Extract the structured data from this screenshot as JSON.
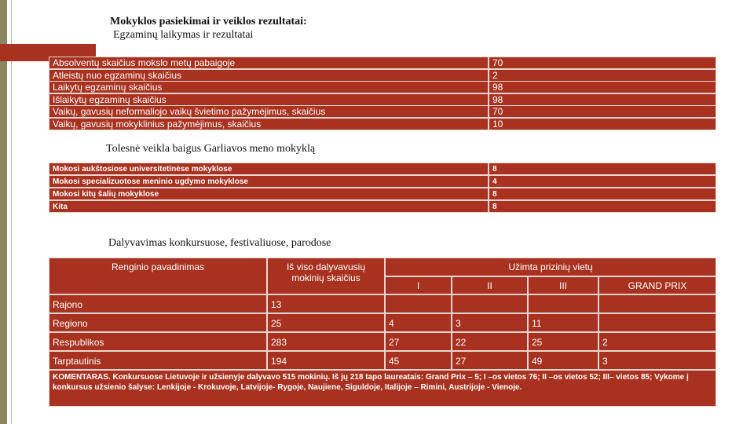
{
  "header": {
    "title": "Mokyklos pasiekimai ir veiklos rezultatai:",
    "subtitle": "Egzaminų laikymas ir rezultatai"
  },
  "exams": {
    "rows": [
      [
        "Absolventų skaičius mokslo metų pabaigoje",
        70
      ],
      [
        "Atleistų nuo egzaminų skaičius",
        2
      ],
      [
        "Laikytų egzaminų skaičius",
        98
      ],
      [
        "Išlaikytų egzaminų skaičius",
        98
      ],
      [
        "Vaikų, gavusių neformaliojo vaikų švietimo pažymėjimus, skaičius",
        70
      ],
      [
        "Vaikų, gavusių mokyklinius pažymėjimus, skaičius",
        10
      ]
    ]
  },
  "further": {
    "heading": "Tolesnė veikla baigus Garliavos meno mokyklą",
    "rows": [
      [
        "Mokosi aukštosiose universitetinėse mokyklose",
        8
      ],
      [
        "Mokosi specializuotose meninio ugdymo mokyklose",
        4
      ],
      [
        "Mokosi kitų šalių mokyklose",
        8
      ],
      [
        "Kita",
        8
      ]
    ]
  },
  "contests": {
    "heading": "Dalyvavimas konkursuose, festivaliuose, parodose",
    "columns": {
      "name": "Renginio pavadinimas",
      "total": "Iš viso dalyvavusių mokinių skaičius",
      "places": "Užimta prizinių vietų",
      "place_labels": [
        "I",
        "II",
        "III",
        "GRAND PRIX"
      ]
    },
    "rows": [
      {
        "name": "Rajono",
        "total": 13
      },
      {
        "name": "Regiono",
        "total": 25,
        "places": [
          4,
          3,
          11
        ]
      },
      {
        "name": "Respublikos",
        "total": 283,
        "places": [
          27,
          22,
          25,
          2
        ]
      },
      {
        "name": "Tarptautinis",
        "total": 194,
        "places": [
          45,
          27,
          49,
          3
        ]
      }
    ],
    "comment": "KOMENTARAS. Konkursuose Lietuvoje ir užsienyje dalyvavo 515 mokinių. Iš jų 218 tapo laureatais: Grand Prix – 5; I –os vietos 76; II –os vietos 52; III– vietos 85; Vykome į konkursus užsienio šalyse: Lenkijoje - Krokuvoje, Latvijoje- Rygoje, Naujiene, Siguldoje, Italijoje – Rimini, Austrijoje - Vienoje."
  }
}
